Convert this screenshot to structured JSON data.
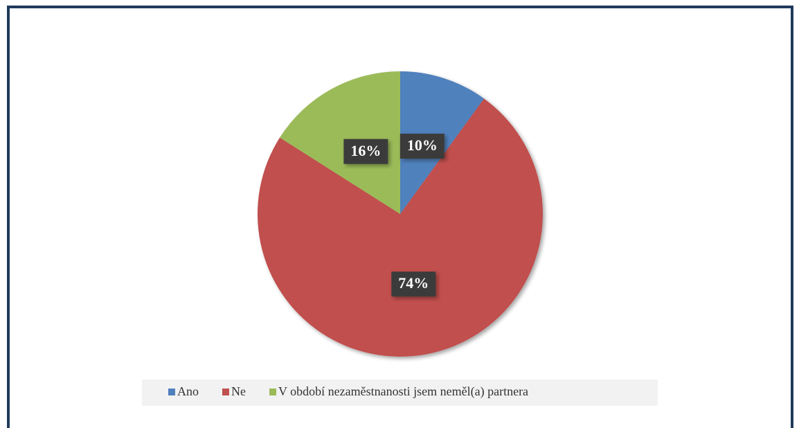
{
  "chart_data": {
    "type": "pie",
    "categories": [
      "Ano",
      "Ne",
      "V období nezaměstnanosti jsem neměl(a) partnera"
    ],
    "values": [
      10,
      74,
      16
    ],
    "value_labels": [
      "10%",
      "74%",
      "16%"
    ],
    "colors": [
      "#4f81bd",
      "#c0504d",
      "#9bbb59"
    ],
    "legend": "bottom"
  }
}
